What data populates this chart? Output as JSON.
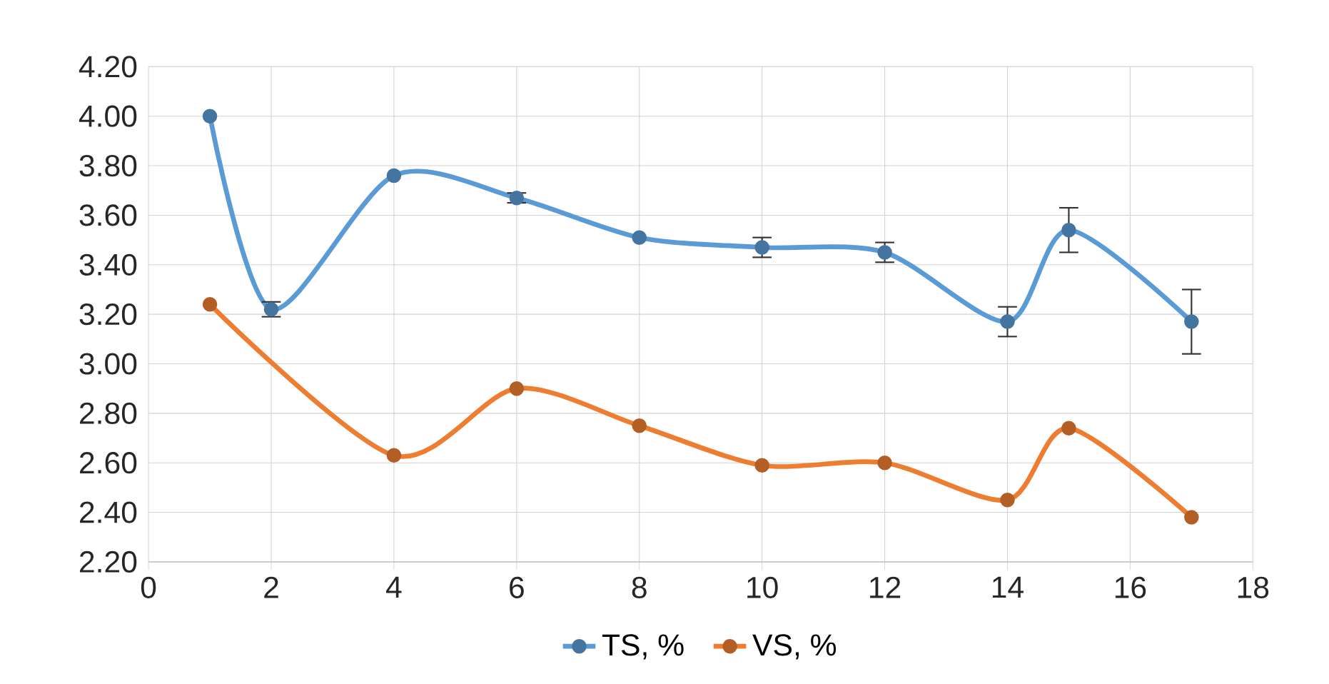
{
  "chart_data": {
    "type": "line",
    "xlim": [
      0,
      18
    ],
    "xticks": [
      0,
      2,
      4,
      6,
      8,
      10,
      12,
      14,
      16,
      18
    ],
    "ylim": [
      2.2,
      4.2
    ],
    "yticks": [
      {
        "value": 2.2,
        "label": "2.20"
      },
      {
        "value": 2.4,
        "label": "2.40"
      },
      {
        "value": 2.6,
        "label": "2.60"
      },
      {
        "value": 2.8,
        "label": "2.80"
      },
      {
        "value": 3.0,
        "label": "3.00"
      },
      {
        "value": 3.2,
        "label": "3.20"
      },
      {
        "value": 3.4,
        "label": "3.40"
      },
      {
        "value": 3.6,
        "label": "3.60"
      },
      {
        "value": 3.8,
        "label": "3.80"
      },
      {
        "value": 4.0,
        "label": "4.00"
      },
      {
        "value": 4.2,
        "label": "4.20"
      }
    ],
    "grid": true,
    "legend": "bottom",
    "marker": "circle",
    "line_style": "solid",
    "series": [
      {
        "name": "TS, %",
        "color": "#5b9bd5",
        "x": [
          1,
          2,
          4,
          6,
          8,
          10,
          12,
          14,
          15,
          17
        ],
        "values": [
          4.0,
          3.22,
          3.76,
          3.67,
          3.51,
          3.47,
          3.45,
          3.17,
          3.54,
          3.17
        ],
        "errors": [
          null,
          0.03,
          null,
          0.02,
          null,
          0.04,
          0.04,
          0.06,
          0.09,
          0.13
        ]
      },
      {
        "name": "VS, %",
        "color": "#ed7d31",
        "x": [
          1,
          4,
          6,
          8,
          10,
          12,
          14,
          15,
          17
        ],
        "values": [
          3.24,
          2.63,
          2.9,
          2.75,
          2.59,
          2.6,
          2.45,
          2.74,
          2.38
        ]
      }
    ]
  }
}
